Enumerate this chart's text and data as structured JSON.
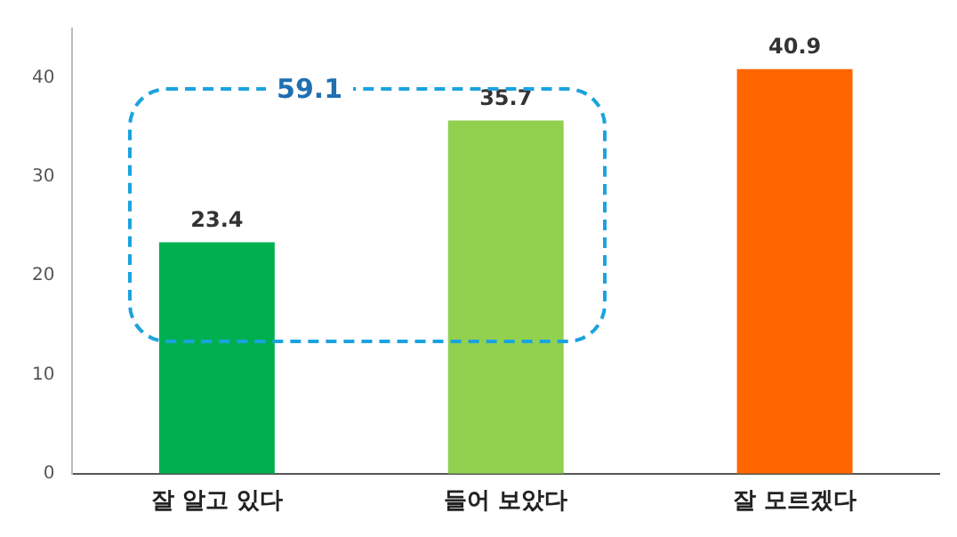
{
  "chart_data": {
    "type": "bar",
    "categories": [
      "잘 알고 있다",
      "들어 보았다",
      "잘 모르겠다"
    ],
    "values": [
      23.4,
      35.7,
      40.9
    ],
    "colors": [
      "#00b050",
      "#92d050",
      "#ff6600"
    ],
    "ylim": [
      0,
      45
    ],
    "yticks": [
      0,
      10,
      20,
      30,
      40
    ],
    "grid": false,
    "legend": false,
    "data_labels": true,
    "annotations": [
      "59.1"
    ]
  }
}
